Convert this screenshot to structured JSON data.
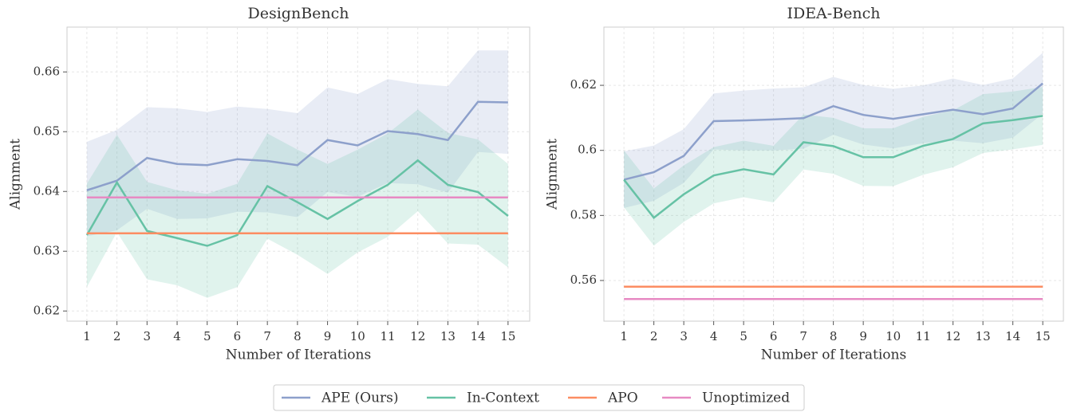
{
  "chart_data": [
    {
      "type": "line",
      "title": "DesignBench",
      "xlabel": "Number of Iterations",
      "ylabel": "Alignment",
      "x": [
        1,
        2,
        3,
        4,
        5,
        6,
        7,
        8,
        9,
        10,
        11,
        12,
        13,
        14,
        15
      ],
      "xlim": [
        0.34,
        15.72
      ],
      "xticks": [
        1,
        2,
        3,
        4,
        5,
        6,
        7,
        8,
        9,
        10,
        11,
        12,
        13,
        14,
        15
      ],
      "ylim": [
        0.6183,
        0.6675
      ],
      "yticks": [
        0.62,
        0.63,
        0.64,
        0.65,
        0.66
      ],
      "grid": true,
      "series": [
        {
          "values": [
            0.6402,
            0.6418,
            0.6456,
            0.6446,
            0.6444,
            0.6454,
            0.6451,
            0.6444,
            0.6486,
            0.6477,
            0.6501,
            0.6496,
            0.6486,
            0.655,
            0.6549
          ],
          "upper": [
            0.6483,
            0.6503,
            0.6541,
            0.6539,
            0.6533,
            0.6542,
            0.6538,
            0.6531,
            0.6574,
            0.6563,
            0.6588,
            0.658,
            0.6576,
            0.6636,
            0.6636
          ],
          "lower": [
            0.6325,
            0.6335,
            0.6371,
            0.6354,
            0.6355,
            0.6366,
            0.6365,
            0.6357,
            0.6399,
            0.6391,
            0.6414,
            0.6412,
            0.6398,
            0.6466,
            0.6463
          ]
        },
        {
          "values": [
            0.6327,
            0.6415,
            0.6334,
            0.6322,
            0.6309,
            0.6327,
            0.6409,
            0.6382,
            0.6354,
            0.6384,
            0.6411,
            0.6452,
            0.6411,
            0.6399,
            0.6359
          ],
          "upper": [
            0.6413,
            0.6495,
            0.6416,
            0.6402,
            0.6396,
            0.6413,
            0.6497,
            0.647,
            0.6446,
            0.647,
            0.6497,
            0.6537,
            0.6498,
            0.6487,
            0.6446
          ],
          "lower": [
            0.624,
            0.6332,
            0.6253,
            0.6243,
            0.6222,
            0.624,
            0.6321,
            0.6294,
            0.6262,
            0.6298,
            0.6324,
            0.6367,
            0.6313,
            0.6311,
            0.6273
          ]
        },
        {
          "values": [
            0.633,
            0.633,
            0.633,
            0.633,
            0.633,
            0.633,
            0.633,
            0.633,
            0.633,
            0.633,
            0.633,
            0.633,
            0.633,
            0.633,
            0.633
          ]
        },
        {
          "values": [
            0.639,
            0.639,
            0.639,
            0.639,
            0.639,
            0.639,
            0.639,
            0.639,
            0.639,
            0.639,
            0.639,
            0.639,
            0.639,
            0.639,
            0.639
          ]
        }
      ]
    },
    {
      "type": "line",
      "title": "IDEA-Bench",
      "xlabel": "Number of Iterations",
      "ylabel": "Alignment",
      "x": [
        1,
        2,
        3,
        4,
        5,
        6,
        7,
        8,
        9,
        10,
        11,
        12,
        13,
        14,
        15
      ],
      "xlim": [
        0.33,
        15.69
      ],
      "xticks": [
        1,
        2,
        3,
        4,
        5,
        6,
        7,
        8,
        9,
        10,
        11,
        12,
        13,
        14,
        15
      ],
      "ylim": [
        0.5475,
        0.6379
      ],
      "yticks": [
        0.56,
        0.58,
        0.6,
        0.62
      ],
      "grid": true,
      "series": [
        {
          "values": [
            0.591,
            0.5933,
            0.5983,
            0.609,
            0.6092,
            0.6095,
            0.6099,
            0.6136,
            0.6109,
            0.6097,
            0.6111,
            0.6125,
            0.6111,
            0.6129,
            0.6206
          ],
          "upper": [
            0.5997,
            0.6015,
            0.6065,
            0.6175,
            0.6184,
            0.619,
            0.6194,
            0.6226,
            0.6201,
            0.6189,
            0.62,
            0.6221,
            0.6201,
            0.6221,
            0.63
          ],
          "lower": [
            0.5823,
            0.5845,
            0.59,
            0.6003,
            0.6,
            0.6,
            0.6005,
            0.6048,
            0.6018,
            0.6006,
            0.6022,
            0.603,
            0.6022,
            0.6039,
            0.6113
          ]
        },
        {
          "values": [
            0.591,
            0.5793,
            0.5865,
            0.5923,
            0.5942,
            0.5926,
            0.6025,
            0.6013,
            0.5979,
            0.5979,
            0.6014,
            0.6035,
            0.6083,
            0.6093,
            0.6106
          ],
          "upper": [
            0.6,
            0.5883,
            0.5954,
            0.601,
            0.603,
            0.6014,
            0.611,
            0.61,
            0.6068,
            0.6068,
            0.6103,
            0.6123,
            0.6173,
            0.6181,
            0.6195
          ],
          "lower": [
            0.5825,
            0.5707,
            0.578,
            0.5837,
            0.5856,
            0.584,
            0.5941,
            0.5928,
            0.5891,
            0.589,
            0.5925,
            0.5948,
            0.5992,
            0.6003,
            0.6017
          ]
        },
        {
          "values": [
            0.5581,
            0.5581,
            0.5581,
            0.5581,
            0.5581,
            0.5581,
            0.5581,
            0.5581,
            0.5581,
            0.5581,
            0.5581,
            0.5581,
            0.5581,
            0.5581,
            0.5581
          ]
        },
        {
          "values": [
            0.5543,
            0.5543,
            0.5543,
            0.5543,
            0.5543,
            0.5543,
            0.5543,
            0.5543,
            0.5543,
            0.5543,
            0.5543,
            0.5543,
            0.5543,
            0.5543,
            0.5543
          ]
        }
      ]
    }
  ],
  "legend": [
    {
      "name": "APE (Ours)",
      "color": "#8da0cb"
    },
    {
      "name": "In-Context",
      "color": "#66c2a5"
    },
    {
      "name": "APO",
      "color": "#fc8d62"
    },
    {
      "name": "Unoptimized",
      "color": "#e78ac3"
    }
  ]
}
